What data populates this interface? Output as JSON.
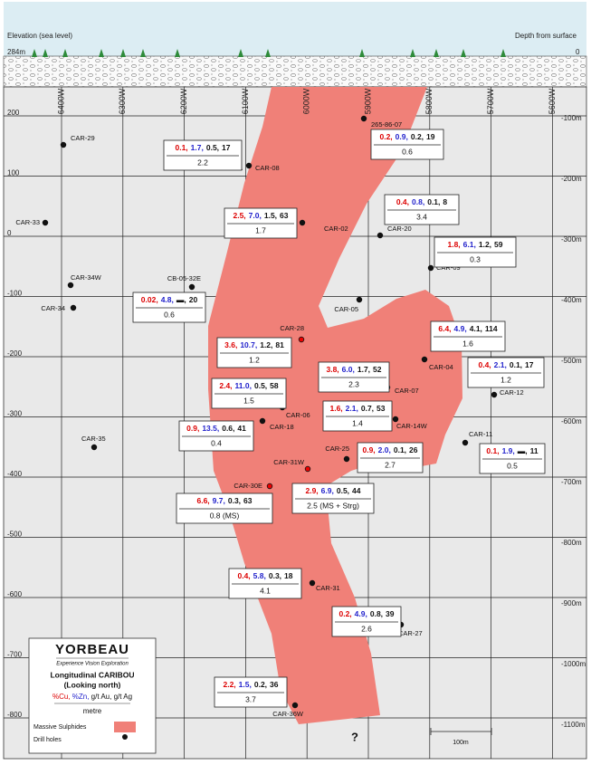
{
  "header": {
    "elevation_label": "Elevation (sea level)",
    "depth_label": "Depth from surface",
    "surface_elevation": "284m",
    "surface_depth": "0"
  },
  "eastings": [
    "6400W",
    "6300W",
    "6200W",
    "6100W",
    "6000W",
    "5900W",
    "5800W",
    "5700W",
    "5600W"
  ],
  "elevations": [
    "200",
    "100",
    "0",
    "-100",
    "-200",
    "-300",
    "-400",
    "-500",
    "-600",
    "-700",
    "-800"
  ],
  "depths": [
    "-100m",
    "-200m",
    "-300m",
    "-400m",
    "-500m",
    "-600m",
    "-700m",
    "-800m",
    "-900m",
    "-1000m",
    "-1100m"
  ],
  "drill_holes": [
    {
      "name": "CAR-29"
    },
    {
      "name": "265-86-07"
    },
    {
      "name": "CAR-08",
      "note": "N/A"
    },
    {
      "name": "CAR-33"
    },
    {
      "name": "CAR-02"
    },
    {
      "name": "CAR-20"
    },
    {
      "name": "CAR-09"
    },
    {
      "name": "CAR-34W"
    },
    {
      "name": "CB-05-32E"
    },
    {
      "name": "CAR-34"
    },
    {
      "name": "CAR-05"
    },
    {
      "name": "CAR-28"
    },
    {
      "name": "CAR-04"
    },
    {
      "name": "CAR-07"
    },
    {
      "name": "CAR-12"
    },
    {
      "name": "CAR-06"
    },
    {
      "name": "CAR-18"
    },
    {
      "name": "CAR-14W"
    },
    {
      "name": "CAR-35"
    },
    {
      "name": "CAR-11"
    },
    {
      "name": "CAR-25"
    },
    {
      "name": "CAR-31W"
    },
    {
      "name": "CAR-30E"
    },
    {
      "name": "CAR-31"
    },
    {
      "name": "CAR-27"
    },
    {
      "name": "CAR-36W"
    }
  ],
  "assays": [
    {
      "cu": "0.1,",
      "zn": "1.7,",
      "au": "0.5,",
      "ag": "17",
      "interval": "2.2"
    },
    {
      "cu": "0.2,",
      "zn": "0.9,",
      "au": "0.2,",
      "ag": "19",
      "interval": "0.6"
    },
    {
      "cu": "2.5,",
      "zn": "7.0,",
      "au": "1.5,",
      "ag": "63",
      "interval": "1.7"
    },
    {
      "cu": "0.4,",
      "zn": "0.8,",
      "au": "0.1,",
      "ag": "8",
      "interval": "3.4"
    },
    {
      "cu": "1.8,",
      "zn": "6.1,",
      "au": "1.2,",
      "ag": "59",
      "interval": "0.3"
    },
    {
      "cu": "0.02,",
      "zn": "4.8,",
      "au": "▬,",
      "ag": "20",
      "interval": "0.6"
    },
    {
      "cu": "6.4,",
      "zn": "4.9,",
      "au": "4.1,",
      "ag": "114",
      "interval": "1.6"
    },
    {
      "cu": "3.6,",
      "zn": "10.7,",
      "au": "1.2,",
      "ag": "81",
      "interval": "1.2"
    },
    {
      "cu": "0.4,",
      "zn": "2.1,",
      "au": "0.1,",
      "ag": "17",
      "interval": "1.2"
    },
    {
      "cu": "3.8,",
      "zn": "6.0,",
      "au": "1.7,",
      "ag": "52",
      "interval": "2.3"
    },
    {
      "cu": "2.4,",
      "zn": "11.0,",
      "au": "0.5,",
      "ag": "58",
      "interval": "1.5"
    },
    {
      "cu": "1.6,",
      "zn": "2.1,",
      "au": "0.7,",
      "ag": "53",
      "interval": "1.4"
    },
    {
      "cu": "0.9,",
      "zn": "13.5,",
      "au": "0.6,",
      "ag": "41",
      "interval": "0.4"
    },
    {
      "cu": "0.1,",
      "zn": "1.9,",
      "au": "▬,",
      "ag": "11",
      "interval": "0.5"
    },
    {
      "cu": "0.9,",
      "zn": "2.0,",
      "au": "0.1,",
      "ag": "26",
      "interval": "2.7"
    },
    {
      "cu": "2.9,",
      "zn": "6.9,",
      "au": "0.5,",
      "ag": "44",
      "interval": "2.5 (MS + Strg)"
    },
    {
      "cu": "6.6,",
      "zn": "9.7,",
      "au": "0.3,",
      "ag": "63",
      "interval": "0.8 (MS)"
    },
    {
      "cu": "0.4,",
      "zn": "5.8,",
      "au": "0.3,",
      "ag": "18",
      "interval": "4.1"
    },
    {
      "cu": "0.2,",
      "zn": "4.9,",
      "au": "0.8,",
      "ag": "39",
      "interval": "2.6"
    },
    {
      "cu": "2.2,",
      "zn": "1.5,",
      "au": "0.2,",
      "ag": "36",
      "interval": "3.7"
    }
  ],
  "legend": {
    "logo": "YORBEAU",
    "tagline": "Experience Vision Exploration",
    "title": "Longitudinal CARIBOU",
    "subtitle": "(Looking north)",
    "units": {
      "cu": "%Cu,",
      "zn": "%Zn,",
      "rest": "g/t Au, g/t Ag"
    },
    "scale_unit": "metre",
    "massive_sulphides": "Massive Sulphides",
    "drill_holes": "Drill holes"
  },
  "unknown": "?",
  "scale_bar": "100m"
}
